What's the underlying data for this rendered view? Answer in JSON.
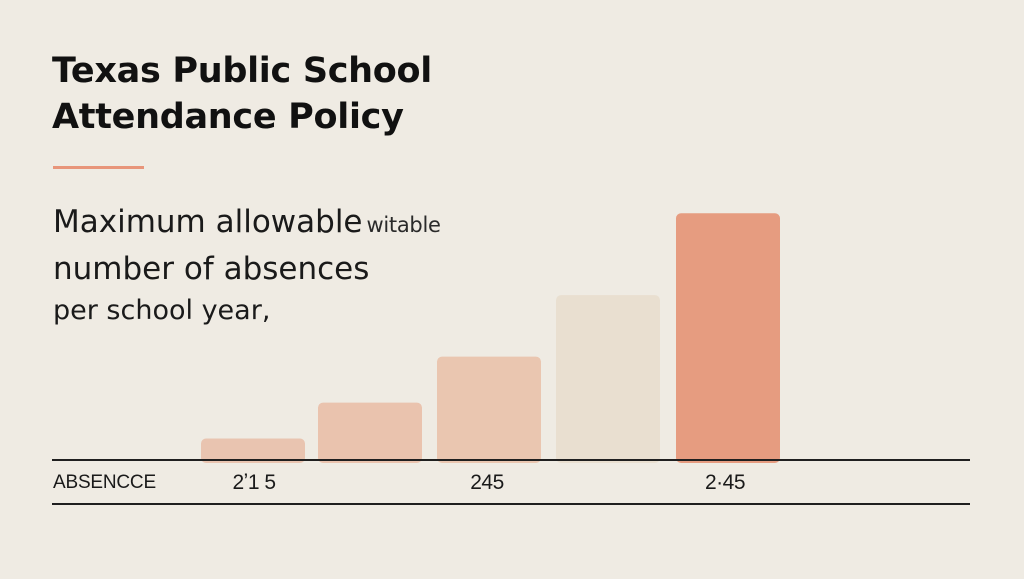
{
  "title": {
    "line1": "Texas Public School",
    "line2": "Attendance Policy"
  },
  "subtitle": {
    "line1": "Maximum allowable",
    "stray": "witable",
    "line2": "number of absences",
    "line3": "per school year,"
  },
  "colors": {
    "background": "#efebe3",
    "accent": "#e8957a",
    "text": "#111111"
  },
  "chart_data": {
    "type": "bar",
    "xlabel": "ABSENCCE",
    "tick_labels": [
      "2ʼ1 5",
      "245",
      "2·45"
    ],
    "values": [
      2,
      5.5,
      10,
      16,
      24
    ],
    "bar_colors": [
      "#e9c4b0",
      "#eac3ae",
      "#eac6b0",
      "#e9dfd0",
      "#e69c80"
    ],
    "ylim": [
      0,
      25
    ],
    "grid": false,
    "legend": "none"
  }
}
